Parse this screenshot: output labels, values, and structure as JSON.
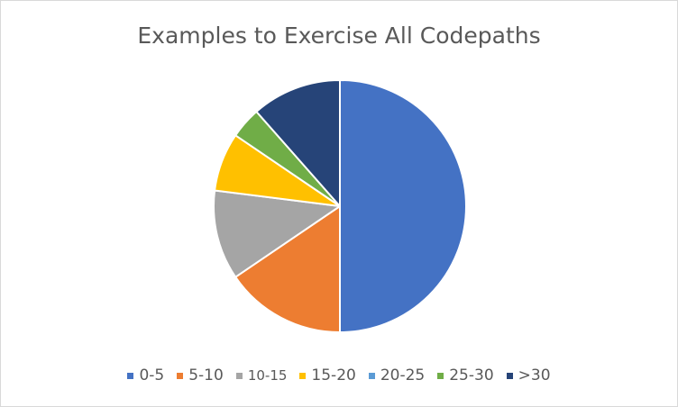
{
  "chart_data": {
    "type": "pie",
    "title": "Examples to Exercise All Codepaths",
    "categories": [
      "0-5",
      "5-10",
      "10-15",
      "15-20",
      "20-25",
      "25-30",
      ">30"
    ],
    "values": [
      50,
      15.5,
      11.5,
      7.5,
      0,
      4,
      11.5
    ],
    "colors": [
      "#4472c4",
      "#ed7d31",
      "#a5a5a5",
      "#ffc000",
      "#5b9bd5",
      "#70ad47",
      "#264478"
    ],
    "legend_position": "bottom",
    "start": "12 o'clock, clockwise"
  }
}
